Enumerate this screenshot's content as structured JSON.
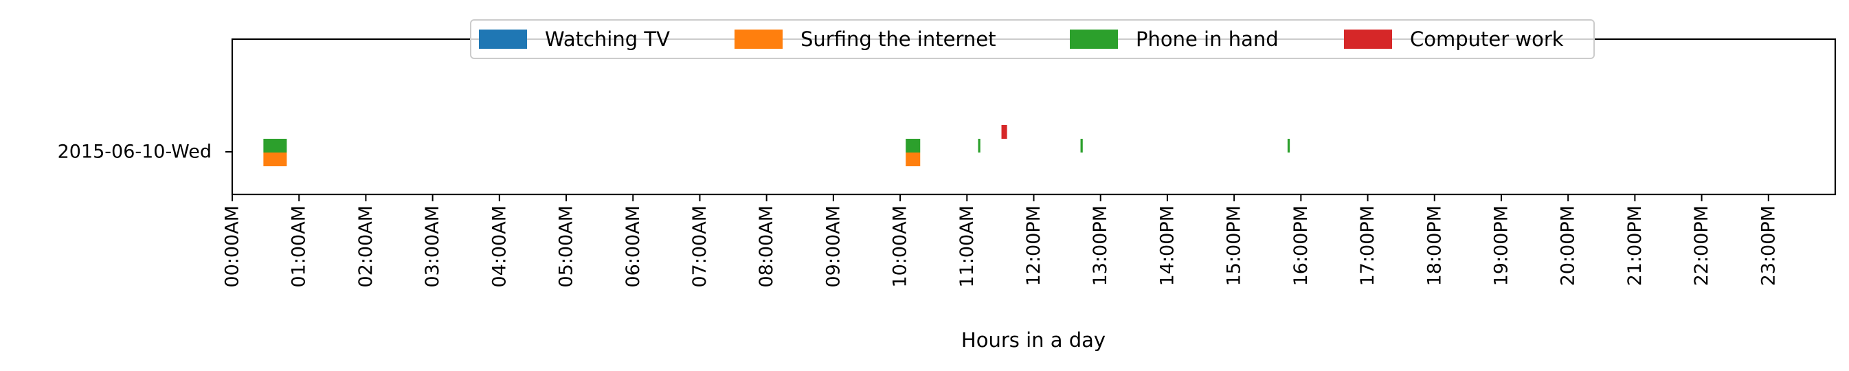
{
  "chart_data": {
    "type": "bar",
    "orientation": "horizontal",
    "xlabel": "Hours in a day",
    "ylabel": "",
    "xlim": [
      0,
      1440
    ],
    "x_unit": "minutes from midnight",
    "grid": false,
    "legend_position": "top-center",
    "y_categories": [
      "2015-06-10-Wed"
    ],
    "x_ticks": [
      {
        "value": 0,
        "label": "00:00AM"
      },
      {
        "value": 60,
        "label": "01:00AM"
      },
      {
        "value": 120,
        "label": "02:00AM"
      },
      {
        "value": 180,
        "label": "03:00AM"
      },
      {
        "value": 240,
        "label": "04:00AM"
      },
      {
        "value": 300,
        "label": "05:00AM"
      },
      {
        "value": 360,
        "label": "06:00AM"
      },
      {
        "value": 420,
        "label": "07:00AM"
      },
      {
        "value": 480,
        "label": "08:00AM"
      },
      {
        "value": 540,
        "label": "09:00AM"
      },
      {
        "value": 600,
        "label": "10:00AM"
      },
      {
        "value": 660,
        "label": "11:00AM"
      },
      {
        "value": 720,
        "label": "12:00PM"
      },
      {
        "value": 780,
        "label": "13:00PM"
      },
      {
        "value": 840,
        "label": "14:00PM"
      },
      {
        "value": 900,
        "label": "15:00PM"
      },
      {
        "value": 960,
        "label": "16:00PM"
      },
      {
        "value": 1020,
        "label": "17:00PM"
      },
      {
        "value": 1080,
        "label": "18:00PM"
      },
      {
        "value": 1140,
        "label": "19:00PM"
      },
      {
        "value": 1200,
        "label": "20:00PM"
      },
      {
        "value": 1260,
        "label": "21:00PM"
      },
      {
        "value": 1320,
        "label": "22:00PM"
      },
      {
        "value": 1380,
        "label": "23:00PM"
      }
    ],
    "series": [
      {
        "name": "Watching TV",
        "color": "#1f77b4",
        "band": 0,
        "intervals": []
      },
      {
        "name": "Surfing the internet",
        "color": "#ff7f0e",
        "band": 0,
        "intervals": [
          [
            28,
            49
          ],
          [
            605,
            618
          ]
        ]
      },
      {
        "name": "Phone in hand",
        "color": "#2ca02c",
        "band": 1,
        "intervals": [
          [
            28,
            49
          ],
          [
            605,
            618
          ],
          [
            670,
            672
          ],
          [
            762,
            764
          ],
          [
            948,
            950
          ]
        ]
      },
      {
        "name": "Computer work",
        "color": "#d62728",
        "band": 2,
        "intervals": [
          [
            691,
            696
          ]
        ]
      }
    ]
  }
}
